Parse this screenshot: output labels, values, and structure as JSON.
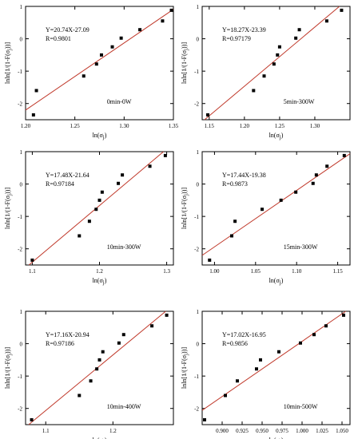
{
  "chart_data": [
    {
      "type": "scatter",
      "title": "",
      "annotation": "0min-0W",
      "equation": "Y=20.74X-27.09",
      "r_value": "R=0.9801",
      "xlabel": "ln(σj)",
      "ylabel": "lnln[1/(1-F(σj))]",
      "xlim": [
        1.2,
        1.35
      ],
      "ylim": [
        -2.5,
        1.0
      ],
      "xticks": [
        1.2,
        1.25,
        1.3,
        1.35
      ],
      "xtick_labels": [
        "1.20",
        "1.25",
        "1.30",
        "1.35"
      ],
      "yticks": [
        -2,
        -1,
        0,
        1
      ],
      "ytick_labels": [
        "-2",
        "-1",
        "0",
        "1"
      ],
      "fit": {
        "slope": 20.74,
        "intercept": -27.09
      },
      "points": [
        {
          "x": 1.208,
          "y": -2.35
        },
        {
          "x": 1.211,
          "y": -1.6
        },
        {
          "x": 1.259,
          "y": -1.15
        },
        {
          "x": 1.272,
          "y": -0.78
        },
        {
          "x": 1.277,
          "y": -0.5
        },
        {
          "x": 1.288,
          "y": -0.25
        },
        {
          "x": 1.297,
          "y": 0.02
        },
        {
          "x": 1.316,
          "y": 0.28
        },
        {
          "x": 1.339,
          "y": 0.55
        },
        {
          "x": 1.348,
          "y": 0.88
        }
      ]
    },
    {
      "type": "scatter",
      "title": "",
      "annotation": "5min-300W",
      "equation": "Y=18.27X-23.39",
      "r_value": "R=0.97179",
      "xlabel": "ln(σj)",
      "ylabel": "lnln[1/(1-F(σj))]",
      "xlim": [
        1.14,
        1.35
      ],
      "ylim": [
        -2.5,
        1.0
      ],
      "xticks": [
        1.15,
        1.2,
        1.25,
        1.3
      ],
      "xtick_labels": [
        "1.15",
        "1.20",
        "1.25",
        "1.30"
      ],
      "yticks": [
        -2,
        -1,
        0,
        1
      ],
      "ytick_labels": [
        "-2",
        "-1",
        "0",
        "1"
      ],
      "fit": {
        "slope": 18.27,
        "intercept": -23.39
      },
      "points": [
        {
          "x": 1.148,
          "y": -2.35
        },
        {
          "x": 1.213,
          "y": -1.6
        },
        {
          "x": 1.228,
          "y": -1.15
        },
        {
          "x": 1.242,
          "y": -0.78
        },
        {
          "x": 1.247,
          "y": -0.5
        },
        {
          "x": 1.25,
          "y": -0.25
        },
        {
          "x": 1.273,
          "y": 0.02
        },
        {
          "x": 1.278,
          "y": 0.28
        },
        {
          "x": 1.317,
          "y": 0.55
        },
        {
          "x": 1.338,
          "y": 0.88
        }
      ]
    },
    {
      "type": "scatter",
      "title": "",
      "annotation": "10min-300W",
      "equation": "Y=17.48X-21.64",
      "r_value": "R=0.97184",
      "xlabel": "ln(σj)",
      "ylabel": "lnln[1/(1-F(σj))]",
      "xlim": [
        1.09,
        1.31
      ],
      "ylim": [
        -2.5,
        1.0
      ],
      "xticks": [
        1.1,
        1.2,
        1.3
      ],
      "xtick_labels": [
        "1.1",
        "1.2",
        "1.3"
      ],
      "yticks": [
        -2,
        -1,
        0,
        1
      ],
      "ytick_labels": [
        "-2",
        "-1",
        "0",
        "1"
      ],
      "fit": {
        "slope": 17.48,
        "intercept": -21.64
      },
      "points": [
        {
          "x": 1.1,
          "y": -2.35
        },
        {
          "x": 1.17,
          "y": -1.6
        },
        {
          "x": 1.185,
          "y": -1.15
        },
        {
          "x": 1.195,
          "y": -0.78
        },
        {
          "x": 1.2,
          "y": -0.5
        },
        {
          "x": 1.204,
          "y": -0.25
        },
        {
          "x": 1.228,
          "y": 0.02
        },
        {
          "x": 1.234,
          "y": 0.28
        },
        {
          "x": 1.275,
          "y": 0.55
        },
        {
          "x": 1.298,
          "y": 0.88
        }
      ]
    },
    {
      "type": "scatter",
      "title": "",
      "annotation": "15min-300W",
      "equation": "Y=17.44X-19.38",
      "r_value": "R=0.9873",
      "xlabel": "ln(σj)",
      "ylabel": "lnln[1/(1-F(σj))]",
      "xlim": [
        0.985,
        1.165
      ],
      "ylim": [
        -2.5,
        1.0
      ],
      "xticks": [
        1.0,
        1.05,
        1.1,
        1.15
      ],
      "xtick_labels": [
        "1.00",
        "1.05",
        "1.10",
        "1.15"
      ],
      "yticks": [
        -2,
        -1,
        0,
        1
      ],
      "ytick_labels": [
        "-2",
        "-1",
        "0",
        "1"
      ],
      "fit": {
        "slope": 17.44,
        "intercept": -19.38
      },
      "points": [
        {
          "x": 0.994,
          "y": -2.35
        },
        {
          "x": 1.021,
          "y": -1.6
        },
        {
          "x": 1.025,
          "y": -1.15
        },
        {
          "x": 1.058,
          "y": -0.78
        },
        {
          "x": 1.081,
          "y": -0.5
        },
        {
          "x": 1.099,
          "y": -0.25
        },
        {
          "x": 1.12,
          "y": 0.02
        },
        {
          "x": 1.124,
          "y": 0.28
        },
        {
          "x": 1.137,
          "y": 0.55
        },
        {
          "x": 1.158,
          "y": 0.88
        }
      ]
    },
    {
      "type": "scatter",
      "title": "",
      "annotation": "10min-400W",
      "equation": "Y=17.16X-20.94",
      "r_value": "R=0.97186",
      "xlabel": "ln(σj)",
      "ylabel": "lnln[1/(1-F(σj))]",
      "xlim": [
        1.07,
        1.29
      ],
      "ylim": [
        -2.5,
        1.0
      ],
      "xticks": [
        1.1,
        1.2
      ],
      "xtick_labels": [
        "1.1",
        "1.2"
      ],
      "yticks": [
        -2,
        -1,
        0,
        1
      ],
      "ytick_labels": [
        "-2",
        "-1",
        "0",
        "1"
      ],
      "fit": {
        "slope": 17.16,
        "intercept": -20.94
      },
      "points": [
        {
          "x": 1.079,
          "y": -2.35
        },
        {
          "x": 1.15,
          "y": -1.6
        },
        {
          "x": 1.167,
          "y": -1.15
        },
        {
          "x": 1.176,
          "y": -0.78
        },
        {
          "x": 1.18,
          "y": -0.5
        },
        {
          "x": 1.185,
          "y": -0.25
        },
        {
          "x": 1.209,
          "y": 0.02
        },
        {
          "x": 1.216,
          "y": 0.28
        },
        {
          "x": 1.258,
          "y": 0.55
        },
        {
          "x": 1.28,
          "y": 0.88
        }
      ]
    },
    {
      "type": "scatter",
      "title": "",
      "annotation": "10min-500W",
      "equation": "Y=17.02X-16.95",
      "r_value": "R=0.9856",
      "xlabel": "ln(σj)",
      "ylabel": "lnln[1/(1-F(σj))]",
      "xlim": [
        0.875,
        1.06
      ],
      "ylim": [
        -2.5,
        1.0
      ],
      "xticks": [
        0.9,
        0.925,
        0.95,
        0.975,
        1.0,
        1.025,
        1.05
      ],
      "xtick_labels": [
        "0.900",
        "0.925",
        "0.950",
        "0.975",
        "1.000",
        "1.025",
        "1.050"
      ],
      "yticks": [
        -2,
        -1,
        0,
        1
      ],
      "ytick_labels": [
        "-2",
        "-1",
        "0",
        "1"
      ],
      "fit": {
        "slope": 17.02,
        "intercept": -16.95
      },
      "points": [
        {
          "x": 0.878,
          "y": -2.35
        },
        {
          "x": 0.904,
          "y": -1.6
        },
        {
          "x": 0.919,
          "y": -1.15
        },
        {
          "x": 0.943,
          "y": -0.78
        },
        {
          "x": 0.948,
          "y": -0.5
        },
        {
          "x": 0.971,
          "y": -0.25
        },
        {
          "x": 0.998,
          "y": 0.02
        },
        {
          "x": 1.015,
          "y": 0.28
        },
        {
          "x": 1.03,
          "y": 0.55
        },
        {
          "x": 1.052,
          "y": 0.88
        }
      ]
    }
  ]
}
